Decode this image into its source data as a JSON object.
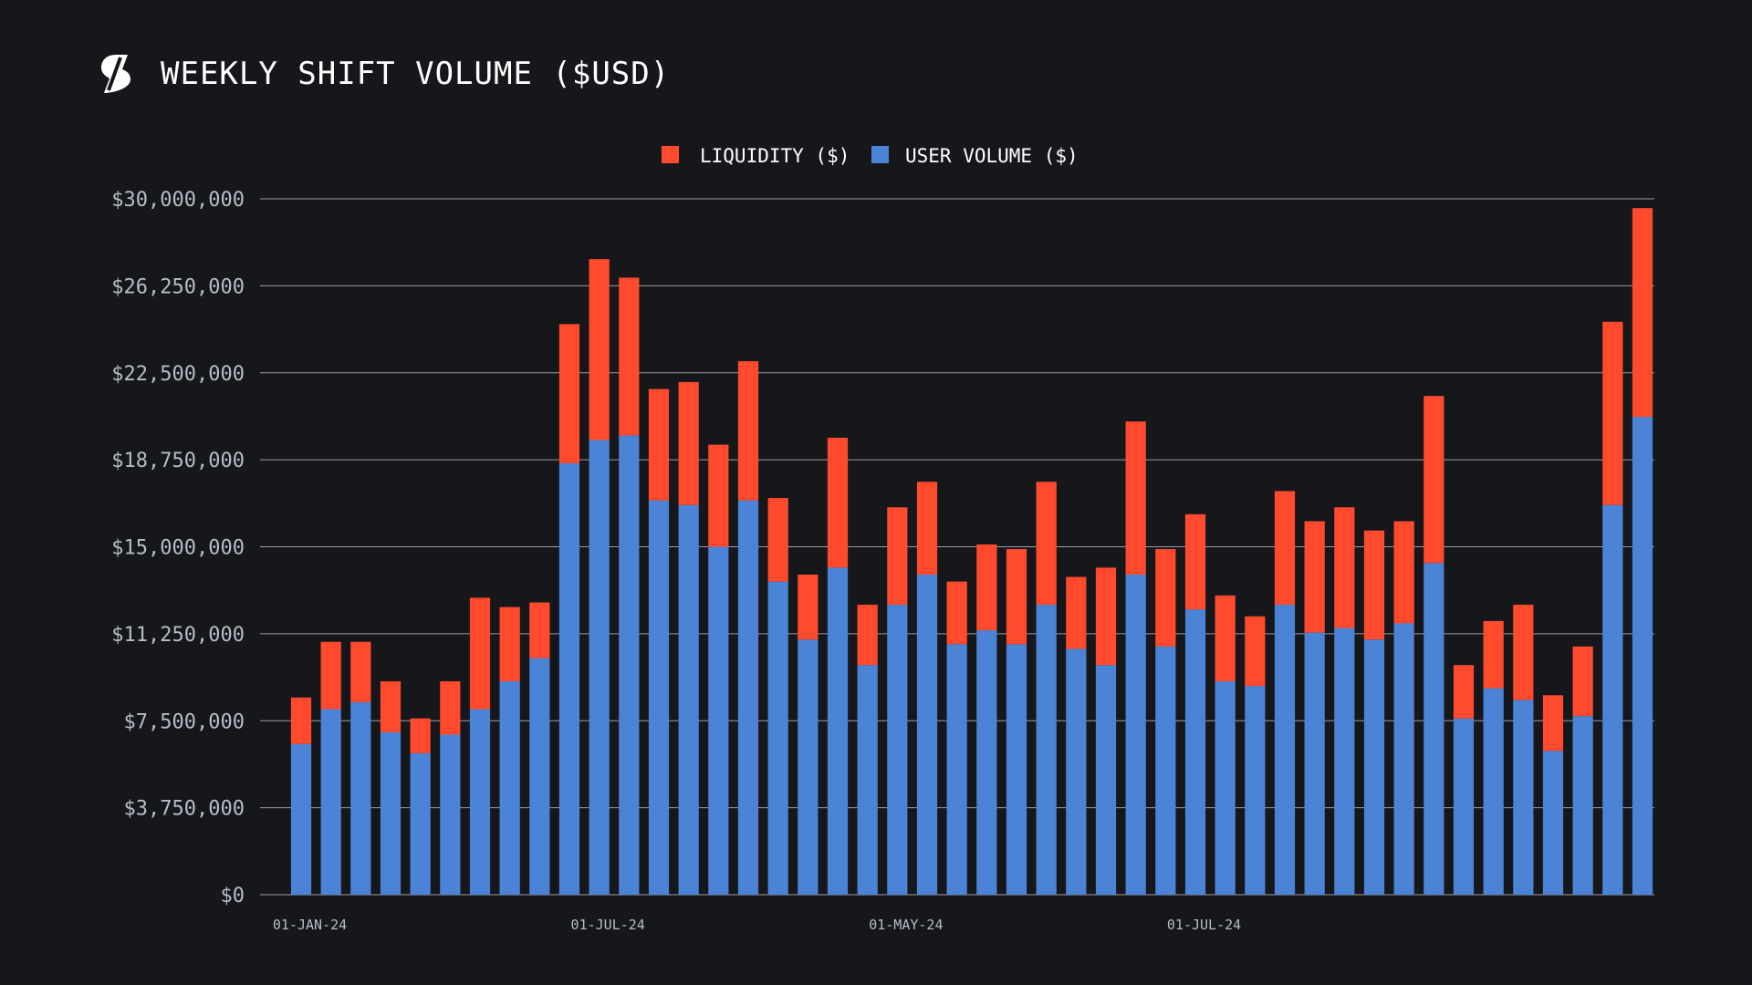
{
  "header": {
    "title": "WEEKLY SHIFT VOLUME ($USD)",
    "logo_icon": "sideshift-s-logo-icon"
  },
  "colors": {
    "background": "#16171b",
    "liquidity": "#ff4a2e",
    "user_volume": "#4b84d6",
    "grid": "#9a9da6",
    "tick_text": "#b8bcc8"
  },
  "chart_data": {
    "type": "bar",
    "stacked": true,
    "title": "WEEKLY SHIFT VOLUME ($USD)",
    "legend": {
      "placement": "top-center",
      "entries": [
        "LIQUIDITY ($)",
        "USER VOLUME ($)"
      ]
    },
    "grid": true,
    "ylim": [
      0,
      30000000
    ],
    "y_ticks": [
      "$30,000,000",
      "$26,250,000",
      "$22,500,000",
      "$18,750,000",
      "$15,000,000",
      "$11,250,000",
      "$7,500,000",
      "$3,750,000",
      "$0"
    ],
    "y_tick_values": [
      30000000,
      26250000,
      22500000,
      18750000,
      15000000,
      11250000,
      7500000,
      3750000,
      0
    ],
    "x_tick_labels": [
      {
        "label": "01-JAN-24",
        "index": 0
      },
      {
        "label": "01-JUL-24",
        "index": 10
      },
      {
        "label": "01-MAY-24",
        "index": 20
      },
      {
        "label": "01-JUL-24",
        "index": 30
      }
    ],
    "series": [
      {
        "name": "USER VOLUME ($)",
        "values": [
          6500000,
          8000000,
          8300000,
          7000000,
          6100000,
          6900000,
          8000000,
          9200000,
          10200000,
          18600000,
          19600000,
          19800000,
          17000000,
          16800000,
          15000000,
          17000000,
          13500000,
          11000000,
          14100000,
          9900000,
          12500000,
          13800000,
          10800000,
          11400000,
          10800000,
          12500000,
          10600000,
          9900000,
          13800000,
          10700000,
          12300000,
          9200000,
          9000000,
          12500000,
          11300000,
          11500000,
          11000000,
          11700000,
          14300000,
          7600000,
          8900000,
          8400000,
          6200000,
          7700000,
          16800000,
          20600000
        ]
      },
      {
        "name": "LIQUIDITY ($)",
        "values": [
          2000000,
          2900000,
          2600000,
          2200000,
          1500000,
          2300000,
          4800000,
          3200000,
          2400000,
          6000000,
          7800000,
          6800000,
          4800000,
          5300000,
          4400000,
          6000000,
          3600000,
          2800000,
          5600000,
          2600000,
          4200000,
          4000000,
          2700000,
          3700000,
          4100000,
          5300000,
          3100000,
          4200000,
          6600000,
          4200000,
          4100000,
          3700000,
          3000000,
          4900000,
          4800000,
          5200000,
          4700000,
          4400000,
          7200000,
          2300000,
          2900000,
          4100000,
          2400000,
          3000000,
          7900000,
          9000000
        ]
      }
    ]
  }
}
